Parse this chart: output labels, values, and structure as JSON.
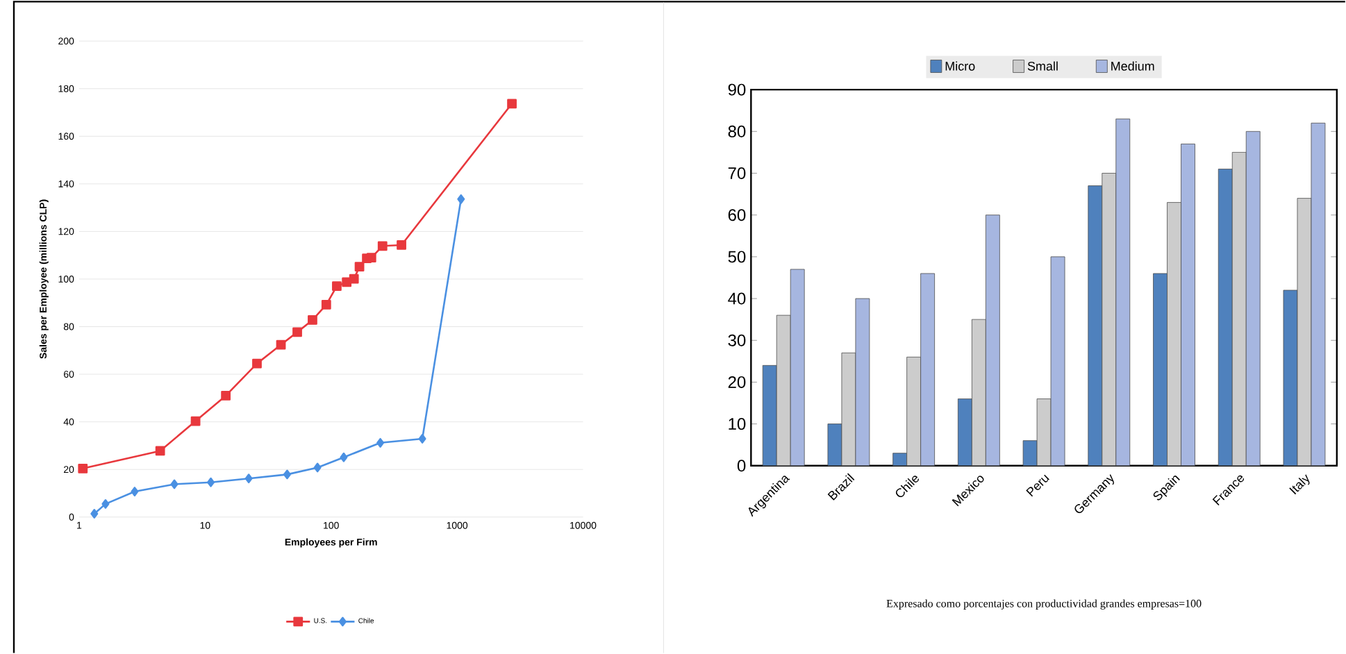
{
  "chart_data": [
    {
      "type": "line",
      "xlabel": "Employees per Firm",
      "ylabel": "Sales per Employee (millions CLP)",
      "log": "x",
      "grid": "y",
      "legend": "bottom",
      "xlim": [
        1,
        10000
      ],
      "xticks": [
        1,
        10,
        100,
        1000,
        10000
      ],
      "ylim": [
        0,
        200
      ],
      "yticks": [
        0,
        20,
        40,
        60,
        80,
        100,
        120,
        140,
        160,
        180,
        200
      ],
      "series": [
        {
          "name": "U.S.",
          "color": "#e8383d",
          "marker": "square",
          "x": [
            1.07,
            4.4,
            8.4,
            14.6,
            25.8,
            40,
            53.9,
            71.2,
            91.6,
            111,
            133,
            152,
            168,
            192,
            209,
            256,
            362,
            2725
          ],
          "values": [
            20.4,
            27.8,
            40.3,
            51,
            64.5,
            72.4,
            77.7,
            82.8,
            89.2,
            97,
            98.7,
            100.1,
            105.2,
            108.7,
            109,
            113.9,
            114.3,
            173.7
          ]
        },
        {
          "name": "Chile",
          "color": "#4a90e2",
          "marker": "diamond",
          "x": [
            1.32,
            1.62,
            2.76,
            5.7,
            11.1,
            22.2,
            44.8,
            78,
            126,
            246,
            530,
            1075
          ],
          "values": [
            1.4,
            5.5,
            10.7,
            13.8,
            14.6,
            16.2,
            17.9,
            20.8,
            25.1,
            31.2,
            32.9,
            133.6
          ]
        }
      ]
    },
    {
      "type": "bar",
      "legend": "top",
      "ylim": [
        0,
        90
      ],
      "yticks": [
        0,
        10,
        20,
        30,
        40,
        50,
        60,
        70,
        80,
        90
      ],
      "categories": [
        "Argentina",
        "Brazil",
        "Chile",
        "Mexico",
        "Peru",
        "Germany",
        "Spain",
        "France",
        "Italy"
      ],
      "annotations": [
        "Expresado como porcentajes con productividad grandes empresas=100"
      ],
      "series": [
        {
          "name": "Micro",
          "color": "#4f81bd",
          "values": [
            24,
            10,
            3,
            16,
            6,
            67,
            46,
            71,
            42
          ]
        },
        {
          "name": "Small",
          "color": "#cccccc",
          "values": [
            36,
            27,
            26,
            35,
            16,
            70,
            63,
            75,
            64
          ]
        },
        {
          "name": "Medium",
          "color": "#a6b6e0",
          "values": [
            47,
            40,
            46,
            60,
            50,
            83,
            77,
            80,
            82
          ]
        }
      ]
    }
  ]
}
